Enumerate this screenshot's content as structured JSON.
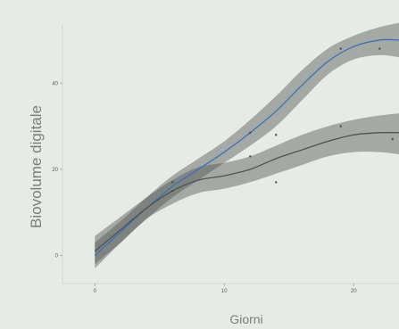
{
  "chart_data": {
    "type": "line",
    "title": "",
    "xlabel": "Giorni",
    "ylabel": "Biovolume digitale",
    "xlim": [
      -2.5,
      23.5
    ],
    "ylim": [
      -6.5,
      53.5
    ],
    "x_ticks": [
      0,
      10,
      20
    ],
    "x_tick_labels": [
      "0",
      "10",
      "20"
    ],
    "y_ticks": [
      0,
      20,
      40
    ],
    "y_tick_labels": [
      "0",
      "20",
      "40"
    ],
    "grid": false,
    "legend": "none",
    "series": [
      {
        "color": "#3a72b8",
        "band_color": "#4a4f4c",
        "x": [
          0,
          2,
          4,
          6,
          8,
          10,
          12,
          14,
          16,
          18,
          20,
          22,
          23.5
        ],
        "y": [
          0,
          5.5,
          11,
          16,
          20,
          24,
          28.5,
          33.5,
          39.5,
          45,
          48.5,
          50,
          50
        ],
        "lower": [
          -3,
          3,
          8.5,
          13.5,
          17.5,
          21.5,
          25.5,
          30,
          36,
          42,
          45.5,
          46.5,
          46
        ],
        "upper": [
          3,
          8,
          13.5,
          18.5,
          22.5,
          26.5,
          31.5,
          37,
          43,
          48,
          51,
          53,
          54
        ],
        "points": [
          [
            6,
            17
          ],
          [
            12,
            28.5
          ],
          [
            14,
            28
          ],
          [
            19,
            48
          ],
          [
            22,
            48
          ]
        ]
      },
      {
        "color": "#4f5350",
        "band_color": "#4a4f4c",
        "x": [
          0,
          2,
          4,
          6,
          8,
          10,
          12,
          14,
          16,
          18,
          20,
          22,
          23.5
        ],
        "y": [
          1,
          6,
          11,
          15,
          17.5,
          18.5,
          20,
          22.5,
          24.5,
          26.5,
          28,
          28.5,
          28.5
        ],
        "lower": [
          -2,
          3,
          8.5,
          12,
          14.5,
          15.5,
          17,
          19,
          21,
          23,
          24,
          24,
          23.5
        ],
        "upper": [
          4.5,
          9,
          13.5,
          17.5,
          20.5,
          21.5,
          23,
          25.5,
          28,
          30,
          31.5,
          32.5,
          33
        ],
        "points": [
          [
            6,
            15
          ],
          [
            12,
            23
          ],
          [
            14,
            17
          ],
          [
            19,
            30
          ],
          [
            23,
            27
          ]
        ]
      }
    ],
    "colors": {
      "background": "#e6ebe6",
      "axis": "#cfd4cf",
      "point": "#4a4a4a"
    }
  }
}
